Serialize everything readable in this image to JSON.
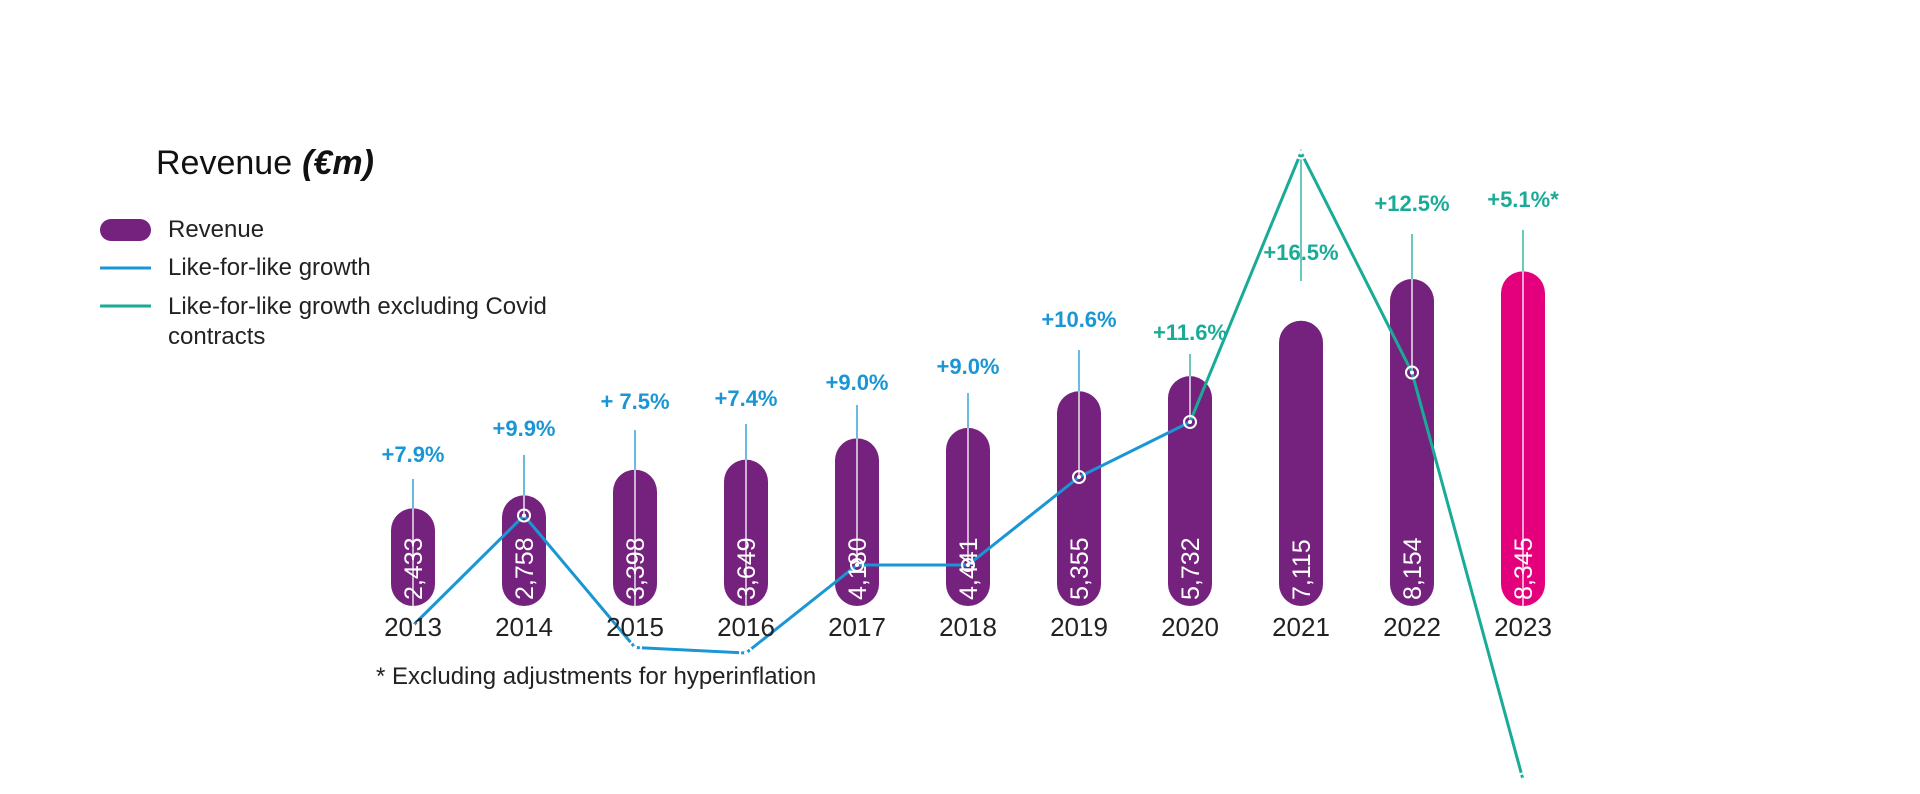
{
  "chart_data": {
    "type": "bar",
    "title": "Revenue",
    "title_unit": "(€m)",
    "categories": [
      "2013",
      "2014",
      "2015",
      "2016",
      "2017",
      "2018",
      "2019",
      "2020",
      "2021",
      "2022",
      "2023"
    ],
    "series": [
      {
        "name": "Revenue",
        "type": "bar",
        "values": [
          2433,
          2758,
          3398,
          3649,
          4180,
          4441,
          5355,
          5732,
          7115,
          8154,
          8345
        ],
        "value_labels": [
          "2,433",
          "2,758",
          "3,398",
          "3,649",
          "4,180",
          "4,441",
          "5,355",
          "5,732",
          "7,115",
          "8,154",
          "8,345"
        ]
      },
      {
        "name": "Like-for-like growth",
        "type": "line",
        "values": [
          7.9,
          9.9,
          7.5,
          7.4,
          9.0,
          9.0,
          10.6,
          11.6,
          null,
          null,
          null
        ],
        "labels": [
          "+7.9%",
          "+9.9%",
          "+ 7.5%",
          "+7.4%",
          "+9.0%",
          "+9.0%",
          "+10.6%",
          "+11.6%",
          "",
          "",
          ""
        ]
      },
      {
        "name": "Like-for-like growth excluding Covid contracts",
        "type": "line",
        "values": [
          null,
          null,
          null,
          null,
          null,
          null,
          null,
          11.6,
          16.5,
          12.5,
          5.1
        ],
        "labels": [
          "",
          "",
          "",
          "",
          "",
          "",
          "",
          "",
          "+16.5%",
          "+12.5%",
          "+5.1%*"
        ]
      }
    ],
    "legend": {
      "placement": "top-left",
      "entries": [
        "Revenue",
        "Like-for-like growth",
        "Like-for-like growth excluding Covid",
        "contracts"
      ]
    },
    "footnote": "* Excluding adjustments for hyperinflation",
    "colors": {
      "bar": "#74227d",
      "bar_highlight": "#e4007c",
      "lfl_line": "#1a96d4",
      "lfl_covid_line": "#1aab97"
    }
  }
}
